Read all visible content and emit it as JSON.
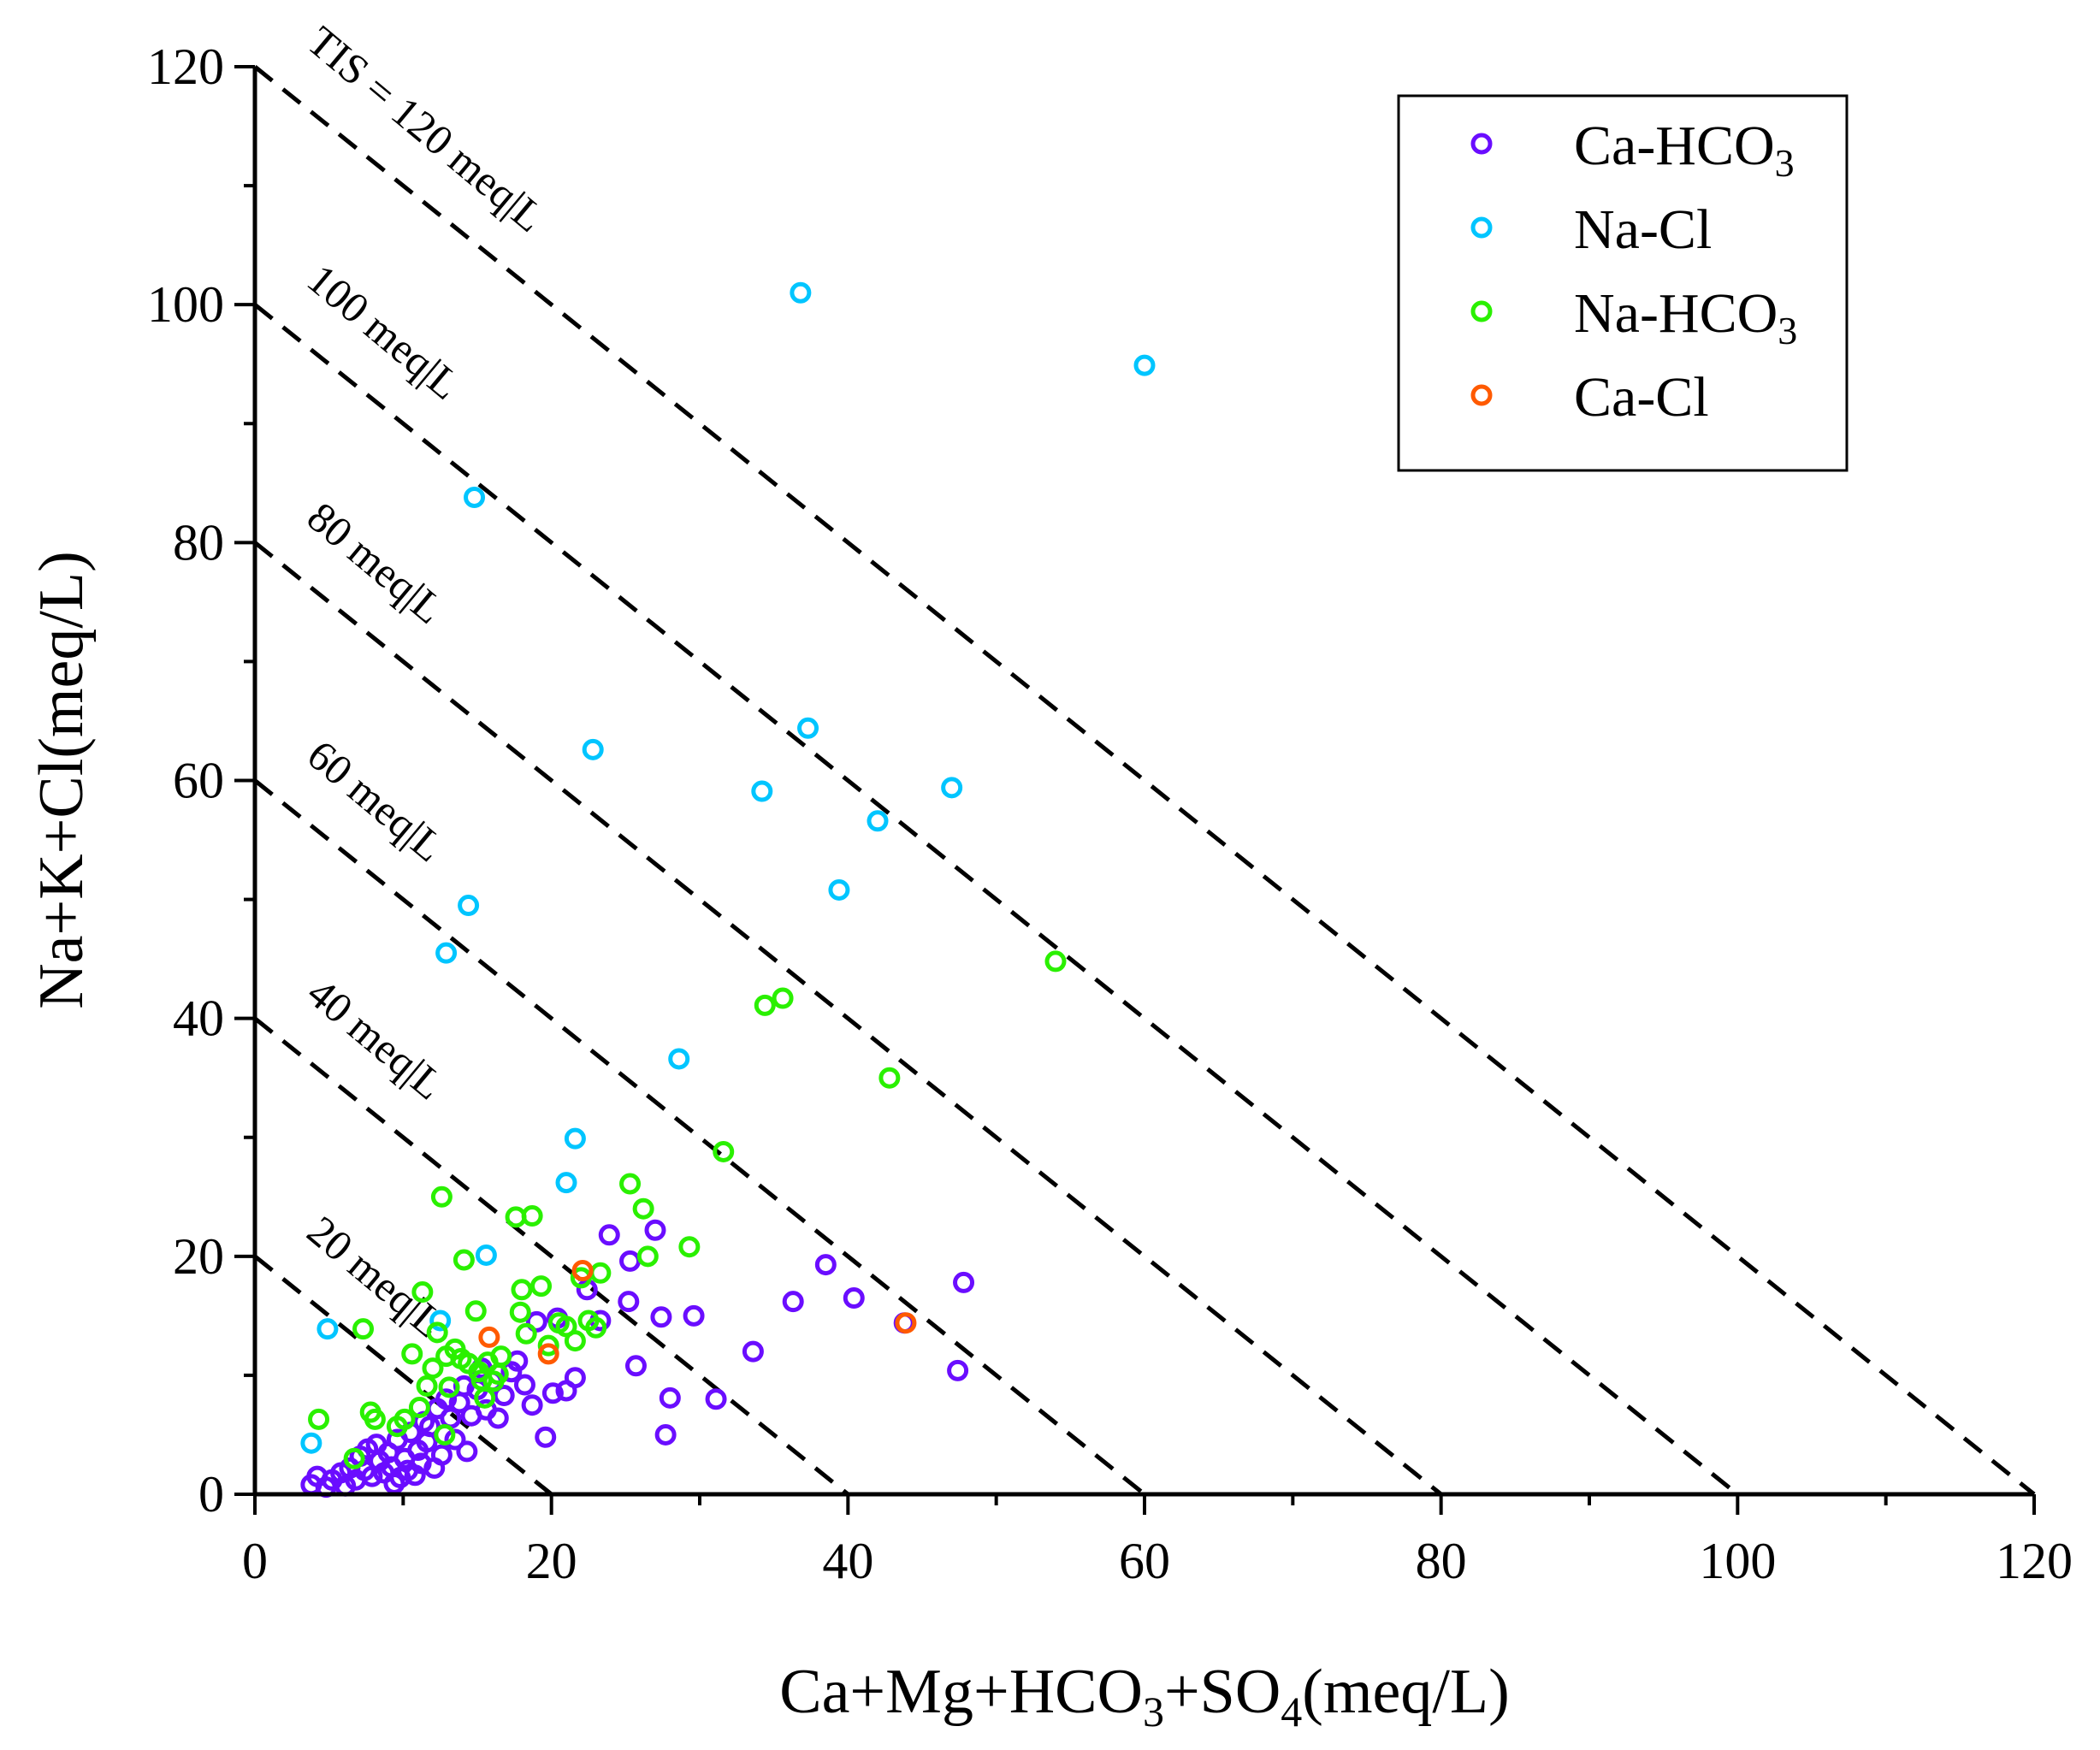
{
  "chart_data": {
    "type": "scatter",
    "xlabel": {
      "base": "Ca+Mg+HCO",
      "sub1": "3",
      "mid": "+SO",
      "sub2": "4",
      "tail": "(meq/L)"
    },
    "ylabel": "Na+K+Cl(meq/L)",
    "xlim": [
      0,
      120
    ],
    "ylim": [
      0,
      120
    ],
    "x_ticks": [
      "0",
      "20",
      "40",
      "60",
      "80",
      "100",
      "120"
    ],
    "y_ticks": [
      "0",
      "20",
      "40",
      "60",
      "80",
      "100",
      "120"
    ],
    "tds_lines": [
      {
        "value": 20,
        "label": "20 meq|L"
      },
      {
        "value": 40,
        "label": "40 meq|L"
      },
      {
        "value": 60,
        "label": "60 meq|L"
      },
      {
        "value": 80,
        "label": "80 meq|L"
      },
      {
        "value": 100,
        "label": "100 meq|L"
      },
      {
        "value": 120,
        "label": "TIS = 120 meq|L"
      }
    ],
    "legend_position": "top-right",
    "series": [
      {
        "name": "Ca-HCO3",
        "label_base": "Ca-HCO",
        "label_sub": "3",
        "color": "#6a0dff",
        "points": [
          [
            3.8,
            0.8
          ],
          [
            4.2,
            1.5
          ],
          [
            4.8,
            0.6
          ],
          [
            5.2,
            1.2
          ],
          [
            5.8,
            1.8
          ],
          [
            6.1,
            0.7
          ],
          [
            6.4,
            2.2
          ],
          [
            6.8,
            1.2
          ],
          [
            7.1,
            3.2
          ],
          [
            7.4,
            2.0
          ],
          [
            7.6,
            3.8
          ],
          [
            7.9,
            1.5
          ],
          [
            8.2,
            4.2
          ],
          [
            8.4,
            2.8
          ],
          [
            8.7,
            1.8
          ],
          [
            9.0,
            3.5
          ],
          [
            9.2,
            2.3
          ],
          [
            9.4,
            0.9
          ],
          [
            9.6,
            4.6
          ],
          [
            9.8,
            1.4
          ],
          [
            10.1,
            3.0
          ],
          [
            10.3,
            2.0
          ],
          [
            10.5,
            5.2
          ],
          [
            10.8,
            1.6
          ],
          [
            11.0,
            3.7
          ],
          [
            11.2,
            2.6
          ],
          [
            11.4,
            6.1
          ],
          [
            11.6,
            4.4
          ],
          [
            11.8,
            5.7
          ],
          [
            12.1,
            2.2
          ],
          [
            12.3,
            7.2
          ],
          [
            12.6,
            3.3
          ],
          [
            12.9,
            8.0
          ],
          [
            13.2,
            6.4
          ],
          [
            13.5,
            4.6
          ],
          [
            13.8,
            7.7
          ],
          [
            14.1,
            9.1
          ],
          [
            14.3,
            3.6
          ],
          [
            14.6,
            6.6
          ],
          [
            15.0,
            8.8
          ],
          [
            15.3,
            10.6
          ],
          [
            15.6,
            7.1
          ],
          [
            16.0,
            9.5
          ],
          [
            16.4,
            6.4
          ],
          [
            16.8,
            8.3
          ],
          [
            17.3,
            10.3
          ],
          [
            17.7,
            11.2
          ],
          [
            18.2,
            9.2
          ],
          [
            18.7,
            7.5
          ],
          [
            19.0,
            14.5
          ],
          [
            19.6,
            4.8
          ],
          [
            20.1,
            8.5
          ],
          [
            20.4,
            14.8
          ],
          [
            21.0,
            8.7
          ],
          [
            21.6,
            9.8
          ],
          [
            22.4,
            17.2
          ],
          [
            23.3,
            14.6
          ],
          [
            23.9,
            21.8
          ],
          [
            25.2,
            16.2
          ],
          [
            25.3,
            19.6
          ],
          [
            25.7,
            10.8
          ],
          [
            27.0,
            22.2
          ],
          [
            27.4,
            14.9
          ],
          [
            27.7,
            5.0
          ],
          [
            28.0,
            8.1
          ],
          [
            29.6,
            15.0
          ],
          [
            31.1,
            8.0
          ],
          [
            33.6,
            12.0
          ],
          [
            36.3,
            16.2
          ],
          [
            38.5,
            19.3
          ],
          [
            40.4,
            16.5
          ],
          [
            43.8,
            14.4
          ],
          [
            47.4,
            10.4
          ],
          [
            47.8,
            17.8
          ]
        ]
      },
      {
        "name": "Na-Cl",
        "label_base": "Na-Cl",
        "label_sub": "",
        "color": "#00c5ff",
        "points": [
          [
            3.8,
            4.3
          ],
          [
            4.9,
            13.9
          ],
          [
            12.5,
            14.6
          ],
          [
            12.9,
            45.5
          ],
          [
            14.4,
            49.5
          ],
          [
            14.8,
            83.8
          ],
          [
            15.6,
            20.1
          ],
          [
            21.0,
            26.2
          ],
          [
            21.6,
            29.9
          ],
          [
            22.8,
            62.6
          ],
          [
            28.6,
            36.6
          ],
          [
            34.2,
            59.1
          ],
          [
            36.8,
            101.0
          ],
          [
            37.3,
            64.4
          ],
          [
            39.4,
            50.8
          ],
          [
            42.0,
            56.6
          ],
          [
            47.0,
            59.4
          ],
          [
            60.0,
            94.9
          ]
        ]
      },
      {
        "name": "Na-HCO3",
        "label_base": "Na-HCO",
        "label_sub": "3",
        "color": "#2af000",
        "points": [
          [
            4.3,
            6.3
          ],
          [
            6.7,
            3.0
          ],
          [
            7.3,
            13.9
          ],
          [
            7.8,
            6.9
          ],
          [
            8.1,
            6.3
          ],
          [
            9.6,
            5.7
          ],
          [
            10.1,
            6.3
          ],
          [
            10.6,
            11.8
          ],
          [
            11.1,
            7.3
          ],
          [
            11.3,
            17.0
          ],
          [
            11.6,
            9.1
          ],
          [
            12.0,
            10.6
          ],
          [
            12.3,
            13.6
          ],
          [
            12.6,
            25.0
          ],
          [
            12.9,
            11.6
          ],
          [
            13.1,
            9.0
          ],
          [
            12.8,
            5.0
          ],
          [
            13.5,
            12.2
          ],
          [
            13.9,
            11.4
          ],
          [
            14.1,
            19.7
          ],
          [
            14.4,
            11.0
          ],
          [
            14.9,
            15.4
          ],
          [
            15.1,
            10.3
          ],
          [
            15.3,
            9.6
          ],
          [
            15.5,
            8.1
          ],
          [
            15.7,
            11.1
          ],
          [
            16.1,
            9.5
          ],
          [
            16.4,
            10.1
          ],
          [
            16.6,
            11.6
          ],
          [
            17.6,
            23.3
          ],
          [
            17.9,
            15.3
          ],
          [
            18.0,
            17.2
          ],
          [
            18.3,
            13.5
          ],
          [
            18.7,
            23.4
          ],
          [
            19.3,
            17.5
          ],
          [
            19.8,
            12.5
          ],
          [
            20.5,
            14.4
          ],
          [
            21.0,
            14.1
          ],
          [
            21.6,
            12.9
          ],
          [
            22.0,
            18.2
          ],
          [
            22.5,
            14.6
          ],
          [
            23.0,
            14.0
          ],
          [
            23.3,
            18.6
          ],
          [
            25.3,
            26.1
          ],
          [
            26.2,
            24.0
          ],
          [
            26.5,
            20.0
          ],
          [
            29.3,
            20.8
          ],
          [
            31.6,
            28.8
          ],
          [
            34.4,
            41.1
          ],
          [
            35.6,
            41.7
          ],
          [
            42.8,
            35.0
          ],
          [
            54.0,
            44.8
          ]
        ]
      },
      {
        "name": "Ca-Cl",
        "label_base": "Ca-Cl",
        "label_sub": "",
        "color": "#ff5a00",
        "points": [
          [
            15.8,
            13.2
          ],
          [
            19.8,
            11.8
          ],
          [
            22.1,
            18.8
          ],
          [
            43.9,
            14.4
          ]
        ]
      }
    ]
  }
}
